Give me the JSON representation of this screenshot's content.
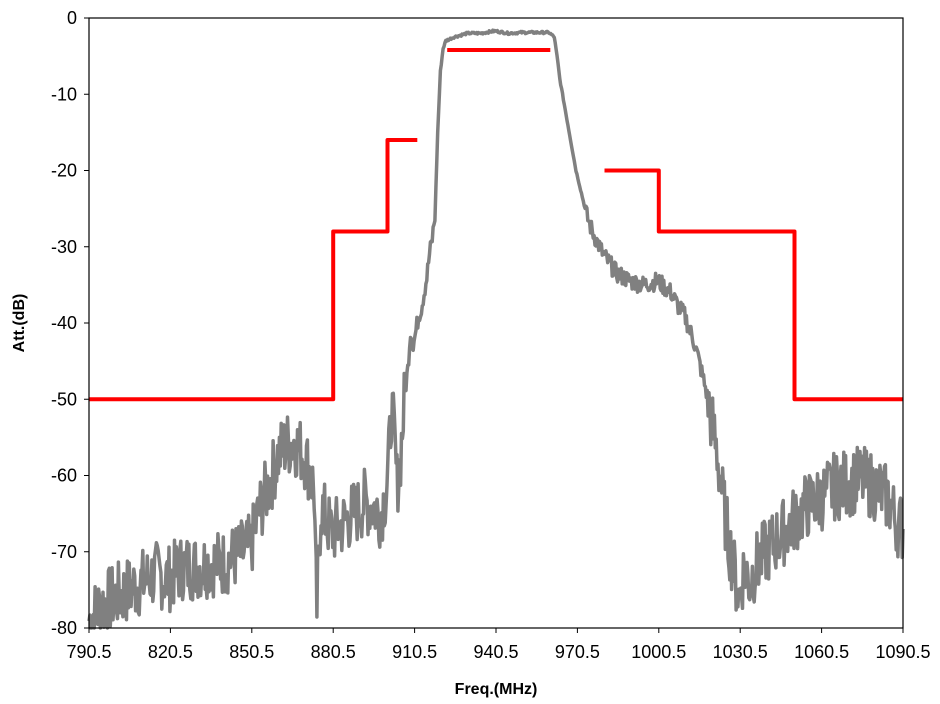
{
  "chart_data": {
    "type": "line",
    "title": "",
    "xlabel": "Freq.(MHz)",
    "ylabel": "Att.(dB)",
    "xlim": [
      790.5,
      1090.5
    ],
    "ylim": [
      -80,
      0
    ],
    "xticks": [
      "790.5",
      "820.5",
      "850.5",
      "880.5",
      "910.5",
      "940.5",
      "970.5",
      "1000.5",
      "1030.5",
      "1060.5",
      "1090.5"
    ],
    "yticks": [
      "0",
      "-10",
      "-20",
      "-30",
      "-40",
      "-50",
      "-60",
      "-70",
      "-80"
    ],
    "grid": false,
    "legend": "none",
    "series": [
      {
        "color": "#808080",
        "style": "measured-noisy",
        "x": [
          790.5,
          795,
          800,
          805,
          810,
          815,
          820,
          825,
          830,
          835,
          840,
          845,
          850,
          853,
          855,
          858,
          860,
          863,
          866,
          868,
          870,
          872,
          873.5,
          874,
          874.5,
          875,
          876,
          878,
          880,
          882,
          885,
          888,
          890,
          892,
          895,
          898,
          900,
          901,
          902,
          903,
          904,
          905,
          906,
          907,
          908,
          909,
          910,
          911,
          912,
          913,
          914,
          915,
          916,
          917,
          918,
          919,
          920,
          921,
          922,
          925,
          930,
          935,
          940,
          945,
          950,
          955,
          960,
          962,
          963,
          964,
          966,
          968,
          970,
          972,
          974,
          976,
          978,
          980,
          985,
          990,
          995,
          1000,
          1005,
          1008,
          1010,
          1012,
          1014,
          1016,
          1018,
          1020,
          1022,
          1024,
          1026,
          1028,
          1030,
          1032,
          1034,
          1036,
          1038,
          1040,
          1045,
          1050,
          1055,
          1060,
          1065,
          1070,
          1075,
          1080,
          1085,
          1088,
          1090.5
        ],
        "y": [
          -79,
          -77,
          -76,
          -75,
          -74,
          -73,
          -73.5,
          -72,
          -72,
          -71.5,
          -71.5,
          -70.5,
          -69.5,
          -65,
          -63,
          -60,
          -57.5,
          -56,
          -55.5,
          -56.5,
          -57.5,
          -59.5,
          -62,
          -72,
          -77.5,
          -72,
          -64,
          -66,
          -67.5,
          -67,
          -66,
          -65,
          -64.5,
          -63.5,
          -64,
          -65,
          -62,
          -58,
          -51,
          -55,
          -61,
          -59,
          -54,
          -49,
          -46,
          -41,
          -43,
          -41,
          -39,
          -38,
          -36,
          -34,
          -31,
          -29,
          -26,
          -15,
          -7,
          -4,
          -3,
          -2.5,
          -2,
          -2,
          -1.7,
          -2,
          -1.9,
          -1.9,
          -1.9,
          -2.5,
          -5,
          -8,
          -12,
          -16,
          -20,
          -23,
          -26,
          -28,
          -29.5,
          -31,
          -33.5,
          -34.5,
          -35,
          -34.5,
          -36,
          -38,
          -39,
          -41,
          -43,
          -46,
          -49,
          -53,
          -57,
          -63,
          -68,
          -72,
          -76,
          -72,
          -74,
          -72,
          -71,
          -70,
          -68,
          -66,
          -64,
          -63,
          -61.5,
          -61,
          -60.5,
          -61.5,
          -63,
          -66,
          -67
        ]
      },
      {
        "color": "#ff0000",
        "style": "spec-mask-lower",
        "x": [
          790.5,
          880.5,
          880.5,
          900.5,
          900.5,
          911.5
        ],
        "y": [
          -50,
          -50,
          -28,
          -28,
          -16,
          -16
        ]
      },
      {
        "color": "#ff0000",
        "style": "spec-mask-passband",
        "x": [
          922.5,
          960.5
        ],
        "y": [
          -4.2,
          -4.2
        ]
      },
      {
        "color": "#ff0000",
        "style": "spec-mask-upper",
        "x": [
          980.5,
          1000.5,
          1000.5,
          1050.5,
          1050.5,
          1090.5
        ],
        "y": [
          -20,
          -20,
          -28,
          -28,
          -50,
          -50
        ]
      }
    ]
  }
}
